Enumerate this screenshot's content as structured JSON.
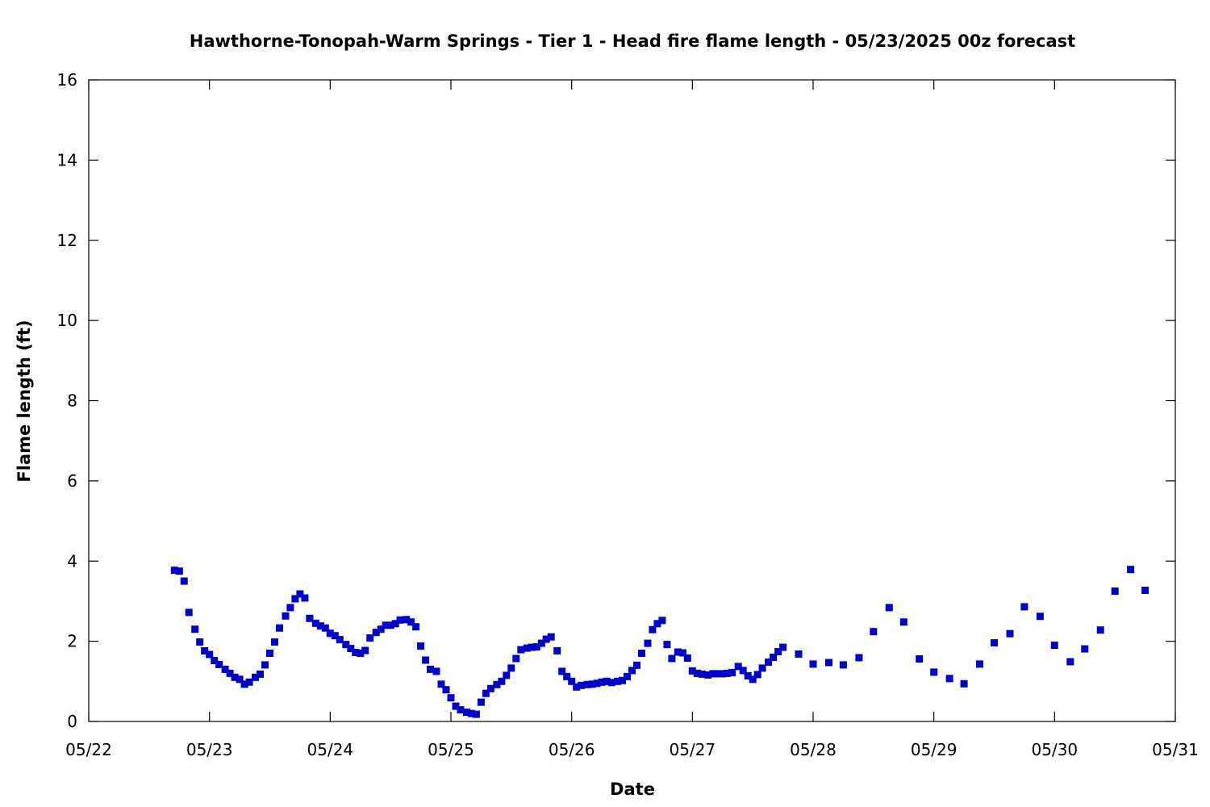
{
  "chart_data": {
    "type": "scatter",
    "title": "Hawthorne-Tonopah-Warm Springs - Tier 1 - Head fire flame length - 05/23/2025 00z forecast",
    "xlabel": "Date",
    "ylabel": "Flame length (ft)",
    "x_unit": "day-of-May",
    "xlim": [
      22,
      31
    ],
    "ylim": [
      0,
      16
    ],
    "x_ticks": [
      {
        "value": 22,
        "label": "05/22"
      },
      {
        "value": 23,
        "label": "05/23"
      },
      {
        "value": 24,
        "label": "05/24"
      },
      {
        "value": 25,
        "label": "05/25"
      },
      {
        "value": 26,
        "label": "05/26"
      },
      {
        "value": 27,
        "label": "05/27"
      },
      {
        "value": 28,
        "label": "05/28"
      },
      {
        "value": 29,
        "label": "05/29"
      },
      {
        "value": 30,
        "label": "05/30"
      },
      {
        "value": 31,
        "label": "05/31"
      }
    ],
    "y_ticks": [
      {
        "value": 0,
        "label": "0"
      },
      {
        "value": 2,
        "label": "2"
      },
      {
        "value": 4,
        "label": "4"
      },
      {
        "value": 6,
        "label": "6"
      },
      {
        "value": 8,
        "label": "8"
      },
      {
        "value": 10,
        "label": "10"
      },
      {
        "value": 12,
        "label": "12"
      },
      {
        "value": 14,
        "label": "14"
      },
      {
        "value": 16,
        "label": "16"
      }
    ],
    "grid": false,
    "marker_color": "#0000cc",
    "series": [
      {
        "points": [
          [
            22.71,
            3.77
          ],
          [
            22.75,
            3.75
          ],
          [
            22.79,
            3.5
          ],
          [
            22.83,
            2.72
          ],
          [
            22.88,
            2.3
          ],
          [
            22.92,
            1.98
          ],
          [
            22.96,
            1.76
          ],
          [
            23.0,
            1.67
          ],
          [
            23.04,
            1.52
          ],
          [
            23.08,
            1.42
          ],
          [
            23.13,
            1.3
          ],
          [
            23.17,
            1.2
          ],
          [
            23.21,
            1.1
          ],
          [
            23.25,
            1.05
          ],
          [
            23.29,
            0.93
          ],
          [
            23.33,
            0.98
          ],
          [
            23.38,
            1.1
          ],
          [
            23.42,
            1.18
          ],
          [
            23.46,
            1.41
          ],
          [
            23.5,
            1.7
          ],
          [
            23.54,
            1.98
          ],
          [
            23.58,
            2.33
          ],
          [
            23.63,
            2.63
          ],
          [
            23.67,
            2.84
          ],
          [
            23.71,
            3.06
          ],
          [
            23.75,
            3.18
          ],
          [
            23.79,
            3.08
          ],
          [
            23.83,
            2.57
          ],
          [
            23.88,
            2.45
          ],
          [
            23.92,
            2.38
          ],
          [
            23.96,
            2.33
          ],
          [
            24.0,
            2.2
          ],
          [
            24.04,
            2.14
          ],
          [
            24.08,
            2.04
          ],
          [
            24.13,
            1.92
          ],
          [
            24.17,
            1.82
          ],
          [
            24.21,
            1.72
          ],
          [
            24.25,
            1.7
          ],
          [
            24.29,
            1.77
          ],
          [
            24.33,
            2.08
          ],
          [
            24.38,
            2.22
          ],
          [
            24.42,
            2.3
          ],
          [
            24.46,
            2.4
          ],
          [
            24.5,
            2.4
          ],
          [
            24.54,
            2.44
          ],
          [
            24.58,
            2.53
          ],
          [
            24.63,
            2.54
          ],
          [
            24.67,
            2.48
          ],
          [
            24.71,
            2.36
          ],
          [
            24.75,
            1.88
          ],
          [
            24.79,
            1.53
          ],
          [
            24.83,
            1.3
          ],
          [
            24.88,
            1.25
          ],
          [
            24.92,
            0.93
          ],
          [
            24.96,
            0.79
          ],
          [
            25.0,
            0.59
          ],
          [
            25.04,
            0.38
          ],
          [
            25.08,
            0.29
          ],
          [
            25.13,
            0.23
          ],
          [
            25.17,
            0.2
          ],
          [
            25.21,
            0.18
          ],
          [
            25.25,
            0.48
          ],
          [
            25.29,
            0.7
          ],
          [
            25.33,
            0.82
          ],
          [
            25.38,
            0.92
          ],
          [
            25.42,
            1.0
          ],
          [
            25.46,
            1.15
          ],
          [
            25.5,
            1.33
          ],
          [
            25.54,
            1.57
          ],
          [
            25.58,
            1.79
          ],
          [
            25.63,
            1.83
          ],
          [
            25.67,
            1.85
          ],
          [
            25.71,
            1.86
          ],
          [
            25.75,
            1.95
          ],
          [
            25.79,
            2.05
          ],
          [
            25.83,
            2.11
          ],
          [
            25.88,
            1.76
          ],
          [
            25.92,
            1.25
          ],
          [
            25.96,
            1.12
          ],
          [
            26.0,
            1.0
          ],
          [
            26.04,
            0.86
          ],
          [
            26.08,
            0.9
          ],
          [
            26.13,
            0.92
          ],
          [
            26.17,
            0.93
          ],
          [
            26.21,
            0.95
          ],
          [
            26.25,
            0.98
          ],
          [
            26.29,
            1.0
          ],
          [
            26.33,
            0.97
          ],
          [
            26.38,
            1.0
          ],
          [
            26.42,
            1.02
          ],
          [
            26.46,
            1.12
          ],
          [
            26.5,
            1.27
          ],
          [
            26.54,
            1.4
          ],
          [
            26.58,
            1.7
          ],
          [
            26.63,
            1.95
          ],
          [
            26.67,
            2.29
          ],
          [
            26.71,
            2.44
          ],
          [
            26.75,
            2.52
          ],
          [
            26.79,
            1.92
          ],
          [
            26.83,
            1.57
          ],
          [
            26.88,
            1.73
          ],
          [
            26.92,
            1.71
          ],
          [
            26.96,
            1.58
          ],
          [
            27.0,
            1.26
          ],
          [
            27.04,
            1.2
          ],
          [
            27.08,
            1.18
          ],
          [
            27.13,
            1.16
          ],
          [
            27.17,
            1.19
          ],
          [
            27.21,
            1.19
          ],
          [
            27.25,
            1.19
          ],
          [
            27.29,
            1.2
          ],
          [
            27.33,
            1.22
          ],
          [
            27.38,
            1.37
          ],
          [
            27.42,
            1.27
          ],
          [
            27.46,
            1.14
          ],
          [
            27.5,
            1.05
          ],
          [
            27.54,
            1.17
          ],
          [
            27.58,
            1.33
          ],
          [
            27.63,
            1.48
          ],
          [
            27.67,
            1.6
          ],
          [
            27.71,
            1.74
          ],
          [
            27.75,
            1.85
          ],
          [
            27.88,
            1.68
          ],
          [
            28.0,
            1.43
          ],
          [
            28.13,
            1.47
          ],
          [
            28.25,
            1.41
          ],
          [
            28.38,
            1.59
          ],
          [
            28.5,
            2.24
          ],
          [
            28.63,
            2.84
          ],
          [
            28.75,
            2.48
          ],
          [
            28.88,
            1.56
          ],
          [
            29.0,
            1.23
          ],
          [
            29.13,
            1.07
          ],
          [
            29.25,
            0.94
          ],
          [
            29.38,
            1.43
          ],
          [
            29.5,
            1.96
          ],
          [
            29.63,
            2.19
          ],
          [
            29.75,
            2.86
          ],
          [
            29.88,
            2.62
          ],
          [
            30.0,
            1.9
          ],
          [
            30.13,
            1.49
          ],
          [
            30.25,
            1.81
          ],
          [
            30.38,
            2.28
          ],
          [
            30.5,
            3.25
          ],
          [
            30.63,
            3.79
          ],
          [
            30.75,
            3.27
          ]
        ]
      }
    ]
  }
}
